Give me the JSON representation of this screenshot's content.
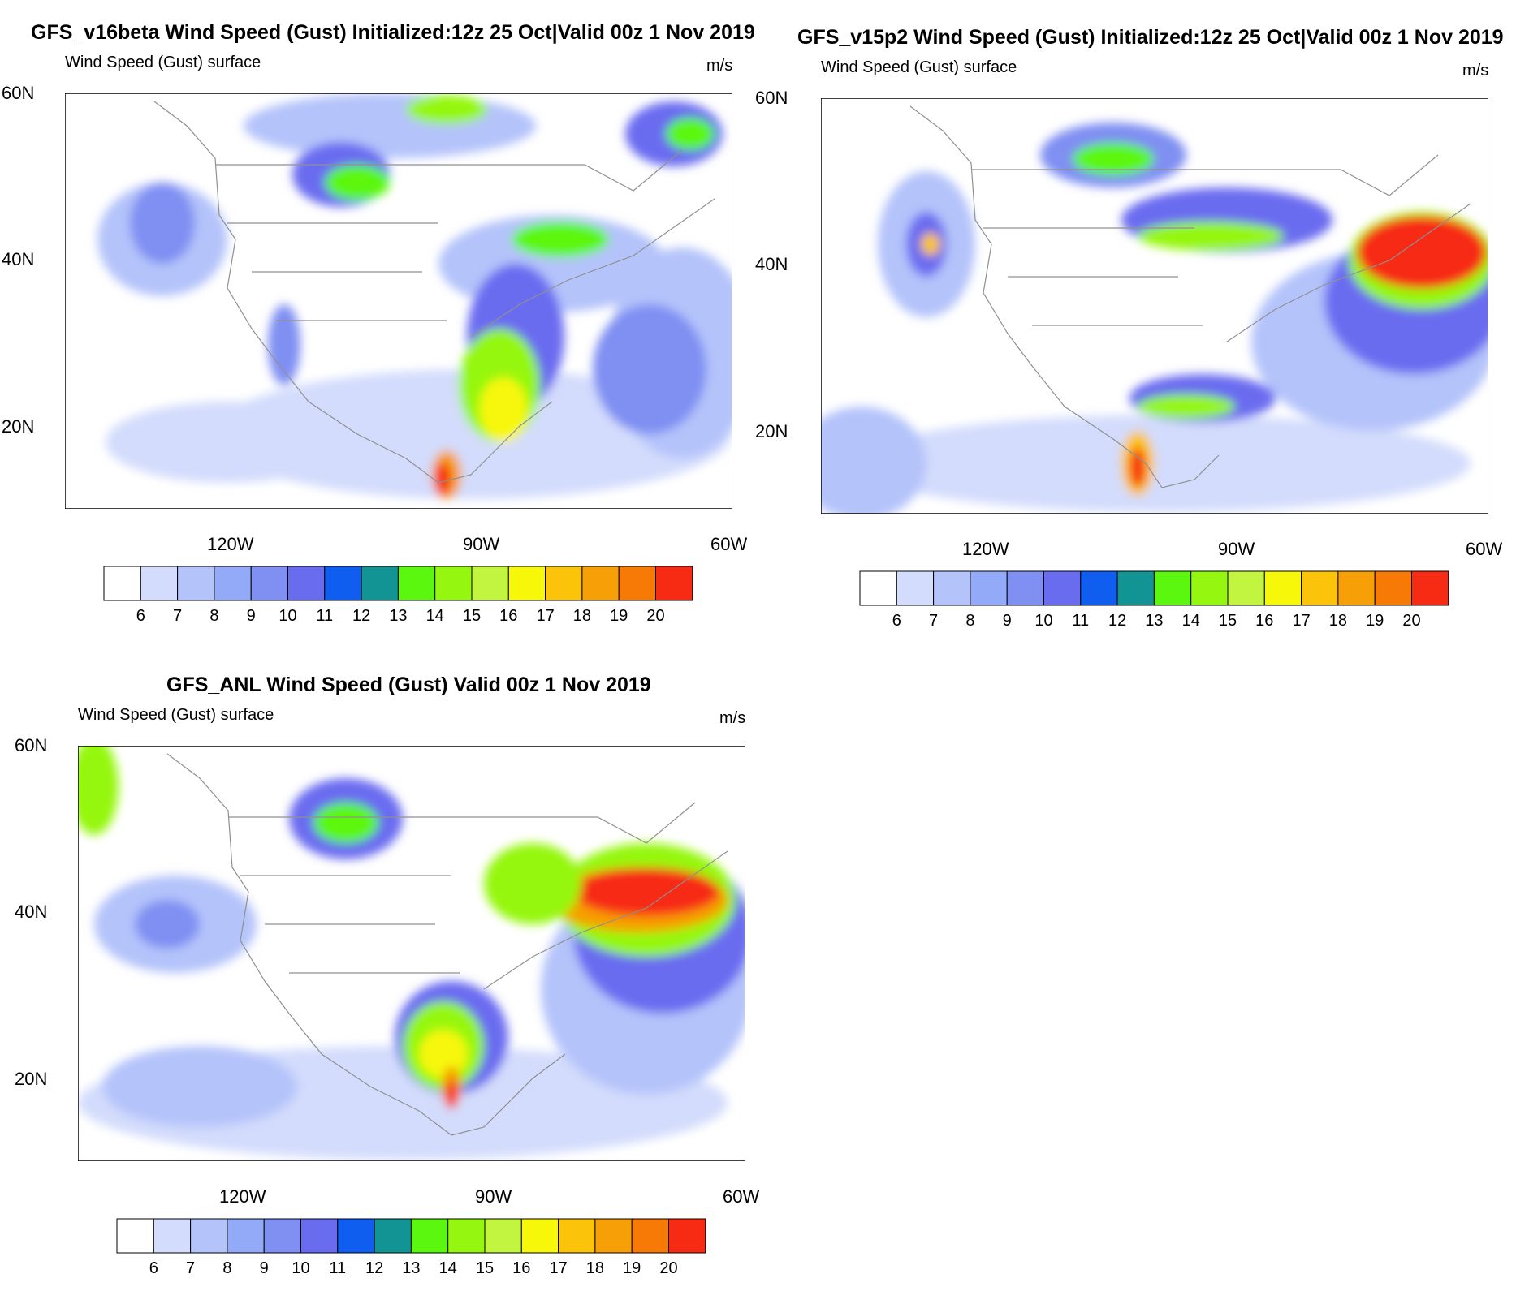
{
  "colors": [
    "#ffffff",
    "#d3dcfc",
    "#b4c3fa",
    "#93aaf8",
    "#7f8ff2",
    "#6a6cf0",
    "#0f5ef0",
    "#139494",
    "#5cf70f",
    "#95f70f",
    "#c2f53f",
    "#f7f70a",
    "#fbc40b",
    "#f79f06",
    "#f77a06",
    "#f72a14"
  ],
  "colorbar_labels": [
    "6",
    "7",
    "8",
    "9",
    "10",
    "11",
    "12",
    "13",
    "14",
    "15",
    "16",
    "17",
    "18",
    "19",
    "20"
  ],
  "panels": [
    {
      "title": "GFS_v16beta Wind Speed (Gust) Initialized:12z 25 Oct|Valid 00z 1 Nov 2019",
      "subtitle_left": "Wind Speed (Gust) surface",
      "subtitle_right": "m/s",
      "lat_labels": [
        "60N",
        "40N",
        "20N"
      ],
      "lon_labels": [
        "120W",
        "90W",
        "60W"
      ]
    },
    {
      "title": "GFS_v15p2 Wind Speed (Gust) Initialized:12z 25 Oct|Valid 00z 1 Nov 2019",
      "subtitle_left": "Wind Speed (Gust) surface",
      "subtitle_right": "m/s",
      "lat_labels": [
        "60N",
        "40N",
        "20N"
      ],
      "lon_labels": [
        "120W",
        "90W",
        "60W"
      ]
    },
    {
      "title": "GFS_ANL Wind Speed (Gust) Valid 00z 1 Nov 2019",
      "subtitle_left": "Wind Speed (Gust) surface",
      "subtitle_right": "m/s",
      "lat_labels": [
        "60N",
        "40N",
        "20N"
      ],
      "lon_labels": [
        "120W",
        "90W",
        "60W"
      ]
    }
  ]
}
